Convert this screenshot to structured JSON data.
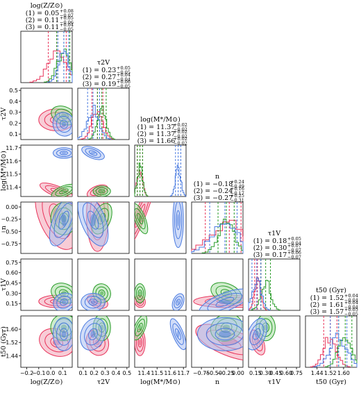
{
  "chart_data": {
    "type": "corner",
    "colors": {
      "1": "#e8335a",
      "2": "#2a9c2a",
      "3": "#4a7be0"
    },
    "colors_light": {
      "1": "#f3a3b4",
      "2": "#a6dca0",
      "3": "#a9c0f2"
    },
    "parameters": [
      {
        "key": "logZ",
        "label": "log(Z/Z⊙)",
        "range": [
          -0.25,
          0.18
        ],
        "ticks": [
          -0.2,
          -0.1,
          0.0,
          0.1
        ],
        "tick_labels": [
          "−0.2",
          "−0.1",
          "0.0",
          "0.1"
        ],
        "title": "log(Z/Z⊙)",
        "results": [
          {
            "label": "(1)",
            "value": "0.05",
            "plus": "+0.08",
            "minus": "−0.07",
            "median": 0.05,
            "lo": -0.02,
            "hi": 0.13
          },
          {
            "label": "(2)",
            "value": "0.11",
            "plus": "+0.05",
            "minus": "−0.06",
            "median": 0.11,
            "lo": 0.05,
            "hi": 0.16
          },
          {
            "label": "(3)",
            "value": "0.11",
            "plus": "+0.04",
            "minus": "−0.05",
            "median": 0.11,
            "lo": 0.06,
            "hi": 0.15
          }
        ]
      },
      {
        "key": "tau2V",
        "label": "τ2V",
        "range": [
          0.05,
          0.52
        ],
        "ticks": [
          0.1,
          0.2,
          0.3,
          0.4,
          0.5
        ],
        "tick_labels": [
          "0.1",
          "0.2",
          "0.3",
          "0.4",
          "0.5"
        ],
        "title": "τ2V",
        "results": [
          {
            "label": "(1)",
            "value": "0.23",
            "plus": "+0.05",
            "minus": "−0.05",
            "median": 0.23,
            "lo": 0.18,
            "hi": 0.28
          },
          {
            "label": "(2)",
            "value": "0.27",
            "plus": "+0.04",
            "minus": "−0.04",
            "median": 0.27,
            "lo": 0.23,
            "hi": 0.31
          },
          {
            "label": "(3)",
            "value": "0.19",
            "plus": "+0.06",
            "minus": "−0.05",
            "median": 0.19,
            "lo": 0.14,
            "hi": 0.25
          }
        ]
      },
      {
        "key": "logM",
        "label": "log(M*/M⊙)",
        "range": [
          11.33,
          11.72
        ],
        "ticks": [
          11.4,
          11.5,
          11.6,
          11.7
        ],
        "tick_labels": [
          "11.4",
          "11.5",
          "11.6",
          "11.7"
        ],
        "title": "log(M*/M⊙)",
        "results": [
          {
            "label": "(1)",
            "value": "11.37",
            "plus": "+0.02",
            "minus": "−0.02",
            "median": 11.37,
            "lo": 11.35,
            "hi": 11.39
          },
          {
            "label": "(2)",
            "value": "11.37",
            "plus": "+0.02",
            "minus": "−0.02",
            "median": 11.37,
            "lo": 11.35,
            "hi": 11.39
          },
          {
            "label": "(3)",
            "value": "11.66",
            "plus": "+0.02",
            "minus": "−0.02",
            "median": 11.66,
            "lo": 11.64,
            "hi": 11.68
          }
        ]
      },
      {
        "key": "n",
        "label": "n",
        "range": [
          -0.95,
          0.1
        ],
        "ticks": [
          -0.75,
          -0.5,
          -0.25,
          0.0
        ],
        "tick_labels": [
          "−0.75",
          "−0.50",
          "−0.25",
          "0.00"
        ],
        "title": "n",
        "results": [
          {
            "label": "(1)",
            "value": "−0.18",
            "plus": "+0.24",
            "minus": "−0.49",
            "median": -0.18,
            "lo": -0.67,
            "hi": 0.06
          },
          {
            "label": "(2)",
            "value": "−0.24",
            "plus": "+0.16",
            "minus": "−0.17",
            "median": -0.24,
            "lo": -0.41,
            "hi": -0.08
          },
          {
            "label": "(3)",
            "value": "−0.27",
            "plus": "+0.25",
            "minus": "−0.31",
            "median": -0.27,
            "lo": -0.58,
            "hi": -0.02
          }
        ]
      },
      {
        "key": "tau1V",
        "label": "τ1V",
        "range": [
          0.05,
          0.8
        ],
        "ticks": [
          0.15,
          0.3,
          0.45,
          0.6,
          0.75
        ],
        "tick_labels": [
          "0.15",
          "0.30",
          "0.45",
          "0.60",
          "0.75"
        ],
        "title": "τ1V",
        "results": [
          {
            "label": "(1)",
            "value": "0.18",
            "plus": "+0.05",
            "minus": "−0.04",
            "median": 0.18,
            "lo": 0.14,
            "hi": 0.23
          },
          {
            "label": "(2)",
            "value": "0.30",
            "plus": "+0.07",
            "minus": "−0.07",
            "median": 0.3,
            "lo": 0.23,
            "hi": 0.37
          },
          {
            "label": "(3)",
            "value": "0.17",
            "plus": "+0.06",
            "minus": "−0.07",
            "median": 0.17,
            "lo": 0.1,
            "hi": 0.23
          }
        ]
      },
      {
        "key": "t50",
        "label": "t50 (Gyr)",
        "range": [
          1.37,
          1.68
        ],
        "ticks": [
          1.44,
          1.52,
          1.6
        ],
        "tick_labels": [
          "1.44",
          "1.52",
          "1.60"
        ],
        "title": "t50 (Gyr)",
        "results": [
          {
            "label": "(1)",
            "value": "1.52",
            "plus": "+0.04",
            "minus": "−0.04",
            "median": 1.52,
            "lo": 1.48,
            "hi": 1.56
          },
          {
            "label": "(2)",
            "value": "1.61",
            "plus": "+0.04",
            "minus": "−0.04",
            "median": 1.61,
            "lo": 1.57,
            "hi": 1.65
          },
          {
            "label": "(3)",
            "value": "1.57",
            "plus": "+0.05",
            "minus": "−0.05",
            "median": 1.57,
            "lo": 1.52,
            "hi": 1.62
          }
        ]
      }
    ],
    "left_tick_overrides": {
      "logM": {
        "ticks": [
          11.4,
          11.5,
          11.6,
          11.7
        ],
        "tick_labels": [
          "11.4",
          "11.5",
          "11.6",
          "11.7"
        ]
      },
      "t50": {
        "ticks": [
          1.44,
          1.52,
          1.6
        ],
        "tick_labels": [
          "1.44",
          "1.52",
          "1.60"
        ]
      }
    },
    "title_equals": "=",
    "legend": "none",
    "grid": false
  }
}
